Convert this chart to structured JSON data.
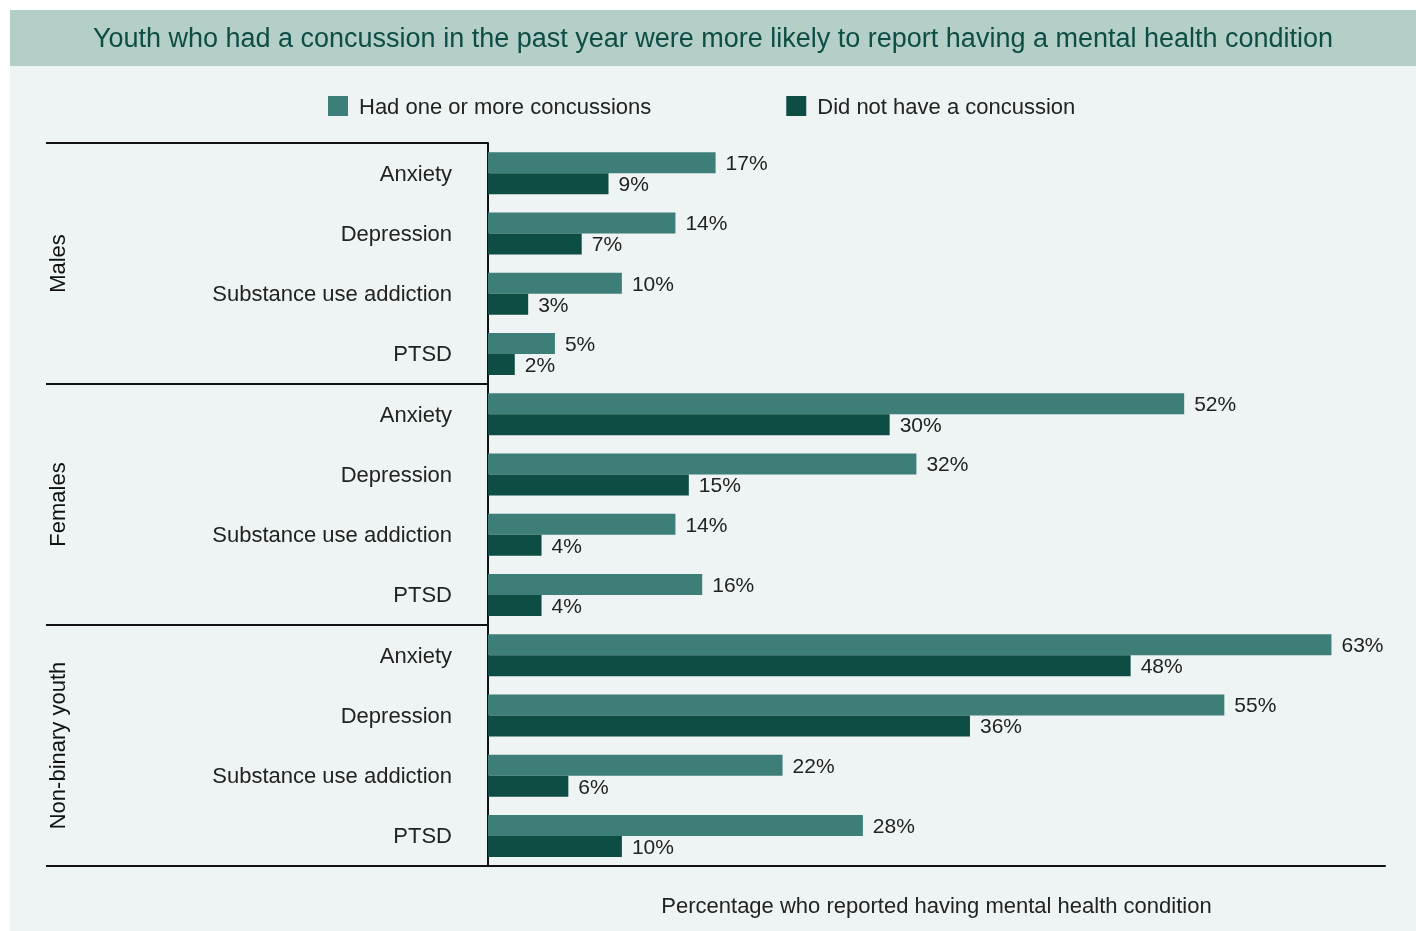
{
  "chart_data": {
    "type": "bar",
    "orientation": "horizontal",
    "title": "Youth who had a concussion in the past year were more likely to report having a mental health condition",
    "xlabel": "Percentage who reported having mental health condition",
    "categories": [
      "Anxiety",
      "Depression",
      "Substance use addiction",
      "PTSD",
      "Anxiety",
      "Depression",
      "Substance use addiction",
      "PTSD",
      "Anxiety",
      "Depression",
      "Substance use addiction",
      "PTSD"
    ],
    "annotations": [
      "Males",
      "Females",
      "Non-binary youth"
    ],
    "series": [
      {
        "name": "Had one or more concussions",
        "color": "#3d7f78",
        "values": [
          17,
          14,
          10,
          5,
          52,
          32,
          14,
          16,
          63,
          55,
          22,
          28
        ],
        "value_labels": [
          "17%",
          "14%",
          "10%",
          "5%",
          "52%",
          "32%",
          "14%",
          "16%",
          "63%",
          "55%",
          "22%",
          "28%"
        ]
      },
      {
        "name": "Did not have a concussion",
        "color": "#0d4d44",
        "values": [
          9,
          7,
          3,
          2,
          30,
          15,
          4,
          4,
          48,
          36,
          6,
          10
        ],
        "value_labels": [
          "9%",
          "7%",
          "3%",
          "2%",
          "30%",
          "15%",
          "4%",
          "4%",
          "48%",
          "36%",
          "6%",
          "10%"
        ]
      }
    ],
    "xlim": [
      0,
      67
    ],
    "tick_labels": "y",
    "grid": false,
    "legend": "top"
  }
}
